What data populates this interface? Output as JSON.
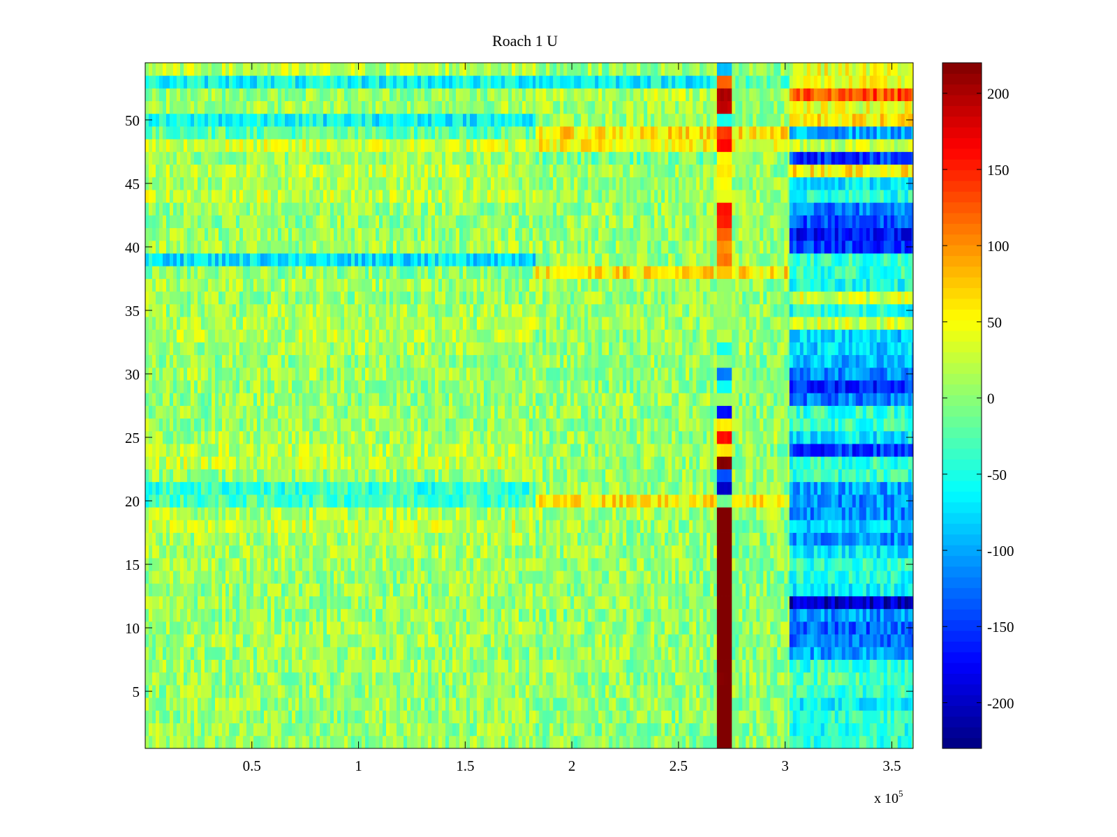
{
  "chart_data": {
    "type": "heatmap",
    "title": "Roach 1 U",
    "xlabel": "",
    "ylabel": "",
    "x_multiplier_label": "x 10",
    "x_multiplier_exponent": "5",
    "xlim": [
      0,
      360000
    ],
    "ylim": [
      0.5,
      54.5
    ],
    "x_ticks": [
      50000,
      100000,
      150000,
      200000,
      250000,
      300000,
      350000
    ],
    "x_tick_labels": [
      "0.5",
      "1",
      "1.5",
      "2",
      "2.5",
      "3",
      "3.5"
    ],
    "y_ticks": [
      5,
      10,
      15,
      20,
      25,
      30,
      35,
      40,
      45,
      50
    ],
    "y_tick_labels": [
      "5",
      "10",
      "15",
      "20",
      "25",
      "30",
      "35",
      "40",
      "45",
      "50"
    ],
    "rows": 54,
    "colormap": "jet",
    "colorbar": {
      "range": [
        -230,
        220
      ],
      "ticks": [
        -200,
        -150,
        -100,
        -50,
        0,
        50,
        100,
        150,
        200
      ],
      "tick_labels": [
        "-200",
        "-150",
        "-100",
        "-50",
        "0",
        "50",
        "100",
        "150",
        "200"
      ]
    },
    "segments_x": [
      0,
      183000,
      268000,
      275000,
      302000,
      360000
    ],
    "row_segment_means": [
      [
        5,
        0,
        230,
        0,
        -40
      ],
      [
        5,
        0,
        230,
        0,
        -50
      ],
      [
        5,
        0,
        230,
        0,
        -40
      ],
      [
        10,
        5,
        230,
        0,
        -60
      ],
      [
        5,
        5,
        230,
        0,
        -40
      ],
      [
        5,
        5,
        220,
        5,
        -30
      ],
      [
        10,
        5,
        230,
        0,
        -40
      ],
      [
        5,
        5,
        230,
        0,
        -100
      ],
      [
        10,
        5,
        230,
        0,
        -120
      ],
      [
        10,
        5,
        230,
        5,
        -130
      ],
      [
        5,
        0,
        230,
        0,
        -110
      ],
      [
        5,
        5,
        230,
        0,
        -200
      ],
      [
        5,
        0,
        230,
        0,
        -60
      ],
      [
        5,
        5,
        230,
        0,
        -50
      ],
      [
        10,
        5,
        230,
        0,
        -40
      ],
      [
        10,
        5,
        230,
        0,
        -70
      ],
      [
        10,
        5,
        230,
        0,
        -110
      ],
      [
        30,
        5,
        230,
        0,
        -80
      ],
      [
        15,
        10,
        230,
        5,
        -110
      ],
      [
        -30,
        60,
        -10,
        60,
        -110
      ],
      [
        -40,
        5,
        -200,
        5,
        -100
      ],
      [
        5,
        5,
        -140,
        5,
        -40
      ],
      [
        25,
        5,
        220,
        5,
        -40
      ],
      [
        20,
        5,
        60,
        0,
        -150
      ],
      [
        10,
        5,
        160,
        10,
        -70
      ],
      [
        5,
        5,
        60,
        0,
        -40
      ],
      [
        5,
        5,
        -170,
        0,
        -40
      ],
      [
        5,
        5,
        5,
        0,
        -120
      ],
      [
        5,
        0,
        -60,
        0,
        -160
      ],
      [
        10,
        5,
        -120,
        0,
        -110
      ],
      [
        5,
        5,
        0,
        0,
        -90
      ],
      [
        10,
        5,
        -50,
        0,
        -80
      ],
      [
        20,
        5,
        20,
        0,
        -80
      ],
      [
        15,
        5,
        5,
        0,
        30
      ],
      [
        10,
        5,
        5,
        0,
        -50
      ],
      [
        5,
        5,
        5,
        0,
        30
      ],
      [
        10,
        5,
        5,
        0,
        -50
      ],
      [
        0,
        60,
        80,
        60,
        -40
      ],
      [
        -70,
        5,
        110,
        5,
        -40
      ],
      [
        10,
        5,
        100,
        5,
        -150
      ],
      [
        5,
        5,
        120,
        5,
        -170
      ],
      [
        5,
        5,
        150,
        5,
        -140
      ],
      [
        5,
        5,
        160,
        5,
        -120
      ],
      [
        25,
        5,
        40,
        10,
        -50
      ],
      [
        10,
        5,
        50,
        5,
        -70
      ],
      [
        25,
        5,
        60,
        5,
        60
      ],
      [
        5,
        -10,
        50,
        5,
        -150
      ],
      [
        30,
        50,
        160,
        40,
        30
      ],
      [
        -20,
        60,
        140,
        60,
        -100
      ],
      [
        -60,
        5,
        -50,
        0,
        60
      ],
      [
        10,
        10,
        190,
        10,
        40
      ],
      [
        5,
        20,
        200,
        5,
        130
      ],
      [
        -60,
        -60,
        120,
        -20,
        40
      ],
      [
        20,
        5,
        -90,
        5,
        40
      ]
    ]
  }
}
